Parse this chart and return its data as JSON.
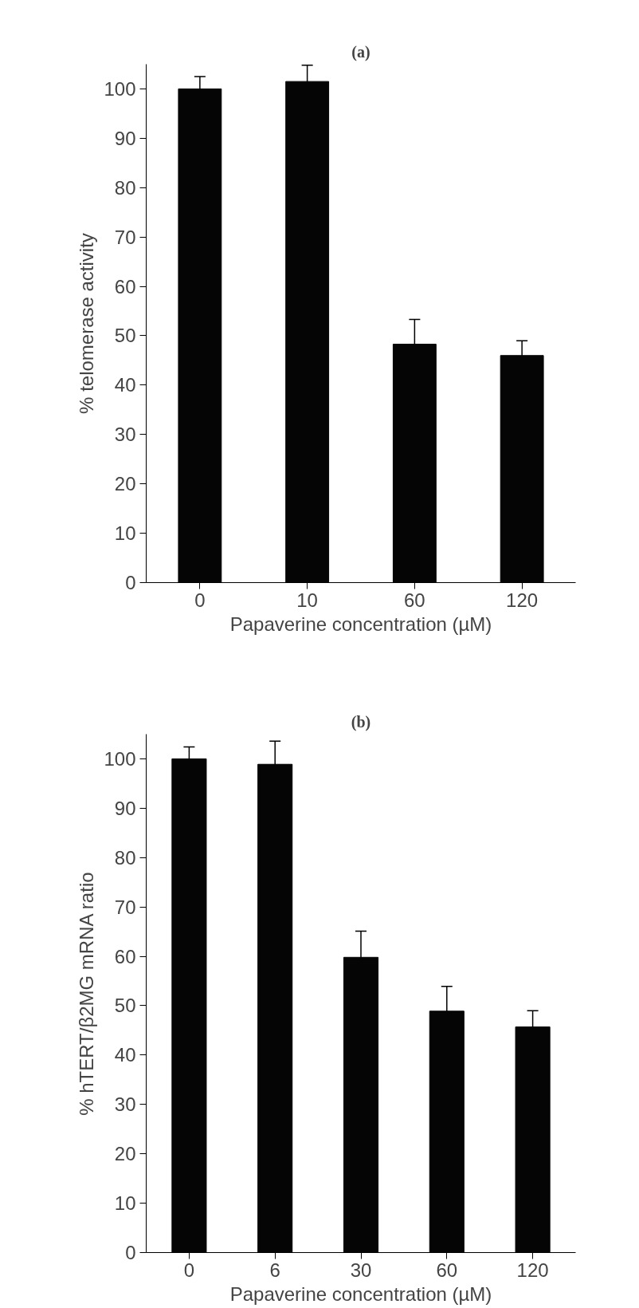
{
  "chart_data": [
    {
      "type": "bar",
      "title": "(a)",
      "xlabel": "Papaverine concentration (µM)",
      "ylabel": "% telomerase activity",
      "categories": [
        "0",
        "10",
        "60",
        "120"
      ],
      "values": [
        100,
        101.5,
        48.3,
        46.0
      ],
      "errors": [
        2.5,
        3.3,
        5,
        3
      ],
      "color": "#050505",
      "ylim": [
        0,
        105
      ],
      "yticks": [
        0,
        10,
        20,
        30,
        40,
        50,
        60,
        70,
        80,
        90,
        100
      ]
    },
    {
      "type": "bar",
      "title": "(b)",
      "xlabel": "Papaverine concentration (µM)",
      "ylabel": "% hTERT/β2MG mRNA ratio",
      "categories": [
        "0",
        "6",
        "30",
        "60",
        "120"
      ],
      "values": [
        100,
        98.9,
        59.8,
        48.9,
        45.7
      ],
      "errors": [
        2.4,
        4.7,
        5.3,
        5,
        3.3
      ],
      "color": "#050505",
      "ylim": [
        0,
        105
      ],
      "yticks": [
        0,
        10,
        20,
        30,
        40,
        50,
        60,
        70,
        80,
        90,
        100
      ]
    }
  ]
}
